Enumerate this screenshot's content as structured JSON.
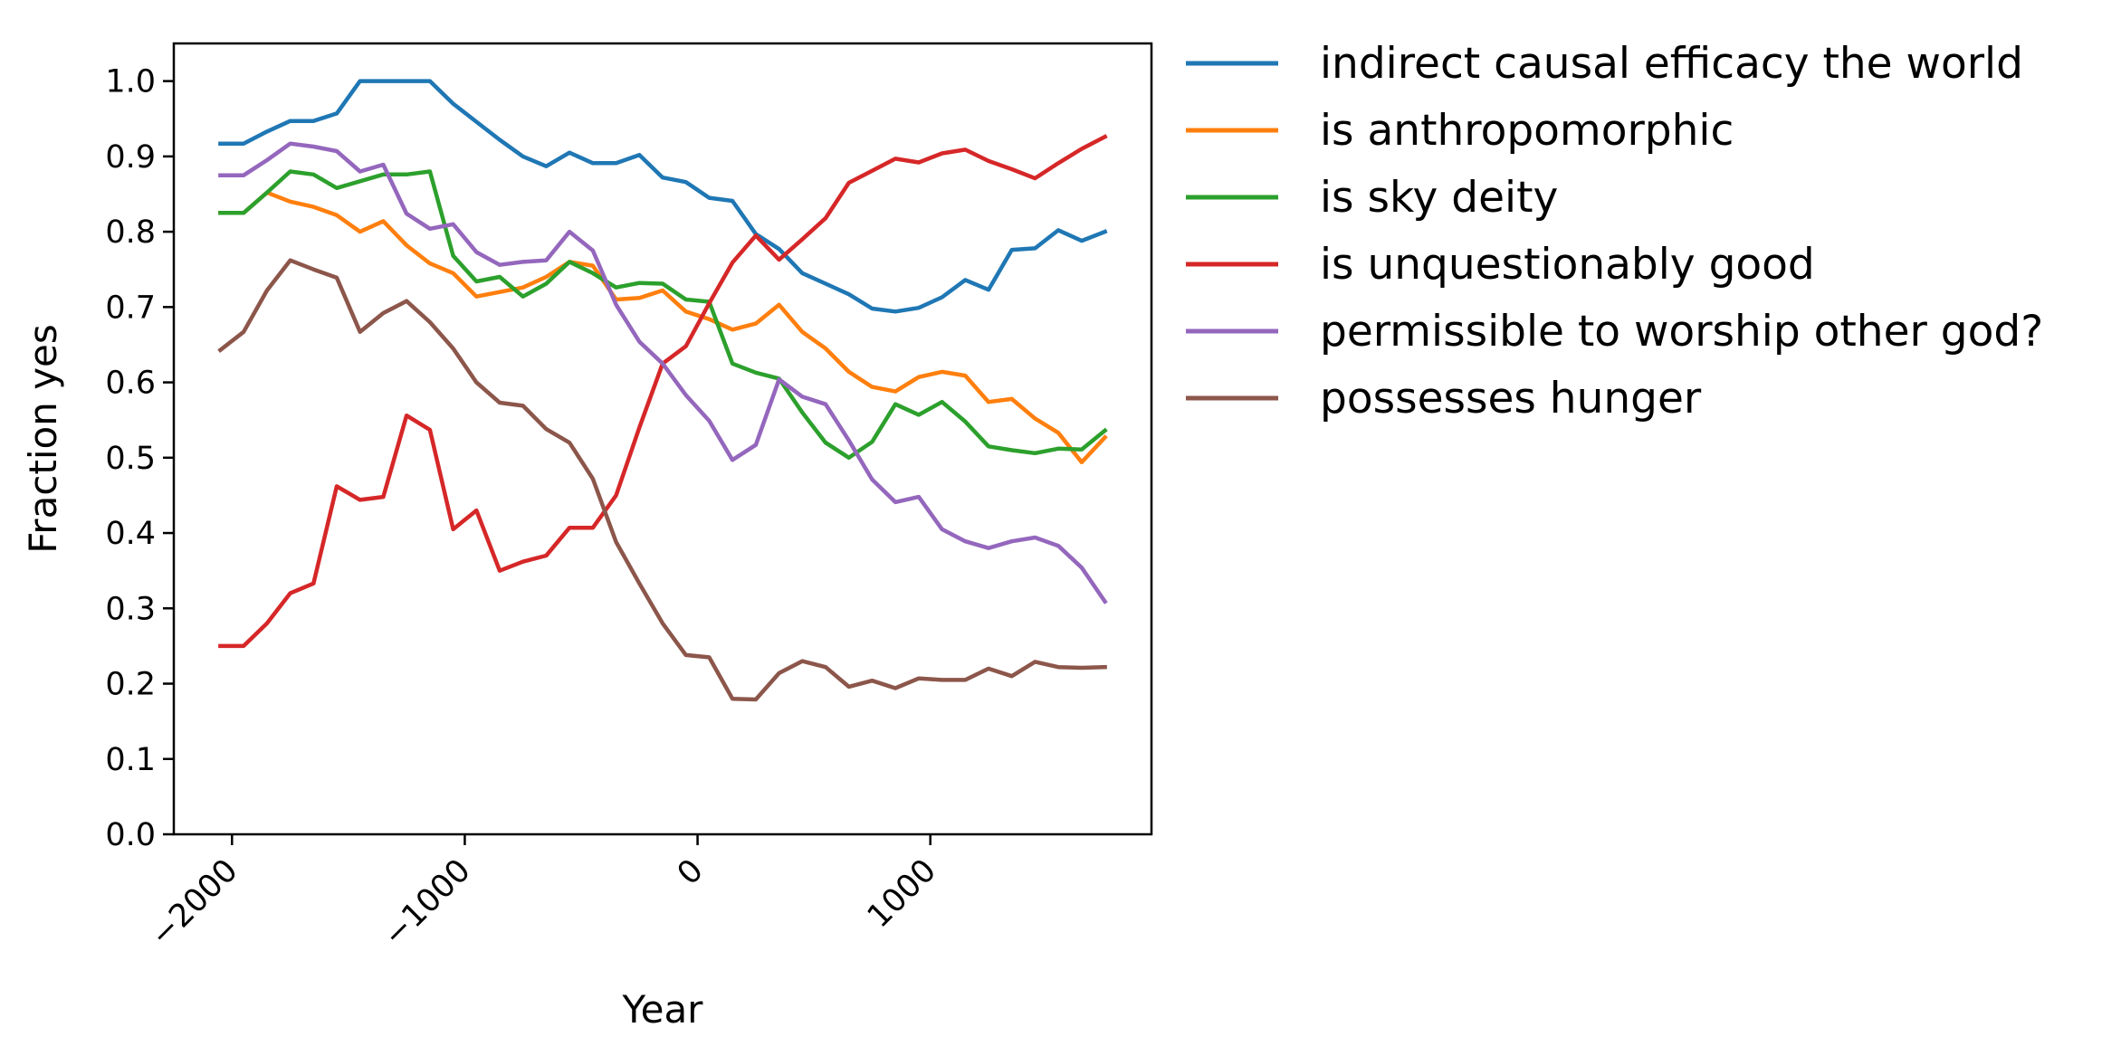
{
  "chart_data": {
    "type": "line",
    "xlabel": "Year",
    "ylabel": "Fraction yes",
    "xlim": [
      -2250,
      1950
    ],
    "ylim": [
      0.0,
      1.05
    ],
    "xticks": [
      -2000,
      -1000,
      0,
      1000
    ],
    "xtick_labels": [
      "−2000",
      "−1000",
      "0",
      "1000"
    ],
    "yticks": [
      0.0,
      0.1,
      0.2,
      0.3,
      0.4,
      0.5,
      0.6,
      0.7,
      0.8,
      0.9,
      1.0
    ],
    "ytick_labels": [
      "0.0",
      "0.1",
      "0.2",
      "0.3",
      "0.4",
      "0.5",
      "0.6",
      "0.7",
      "0.8",
      "0.9",
      "1.0"
    ],
    "grid": false,
    "legend_position": "outside-right-top",
    "x": [
      -2050,
      -1950,
      -1850,
      -1750,
      -1650,
      -1550,
      -1450,
      -1350,
      -1250,
      -1150,
      -1050,
      -950,
      -850,
      -750,
      -650,
      -550,
      -450,
      -350,
      -250,
      -150,
      -50,
      50,
      150,
      250,
      350,
      450,
      550,
      650,
      750,
      850,
      950,
      1050,
      1150,
      1250,
      1350,
      1450,
      1550,
      1650,
      1750
    ],
    "series": [
      {
        "name": "indirect causal efficacy the world",
        "color": "#1f77b4",
        "values": [
          0.917,
          0.917,
          0.933,
          0.947,
          0.947,
          0.957,
          1.0,
          1.0,
          1.0,
          1.0,
          0.97,
          0.946,
          0.922,
          0.9,
          0.887,
          0.905,
          0.891,
          0.891,
          0.902,
          0.872,
          0.866,
          0.845,
          0.841,
          0.797,
          0.777,
          0.745,
          0.731,
          0.717,
          0.698,
          0.694,
          0.699,
          0.713,
          0.736,
          0.723,
          0.776,
          0.778,
          0.802,
          0.788,
          0.8
        ]
      },
      {
        "name": "is anthropomorphic",
        "color": "#ff7f0e",
        "values": [
          0.825,
          0.825,
          0.852,
          0.84,
          0.833,
          0.822,
          0.8,
          0.814,
          0.782,
          0.758,
          0.745,
          0.714,
          0.72,
          0.726,
          0.74,
          0.76,
          0.755,
          0.71,
          0.712,
          0.722,
          0.694,
          0.684,
          0.67,
          0.678,
          0.703,
          0.667,
          0.645,
          0.614,
          0.594,
          0.588,
          0.607,
          0.614,
          0.609,
          0.574,
          0.578,
          0.552,
          0.533,
          0.494,
          0.527
        ]
      },
      {
        "name": "is sky deity",
        "color": "#2ca02c",
        "values": [
          0.825,
          0.825,
          0.852,
          0.88,
          0.876,
          0.858,
          0.867,
          0.876,
          0.876,
          0.88,
          0.768,
          0.734,
          0.74,
          0.714,
          0.731,
          0.76,
          0.745,
          0.726,
          0.732,
          0.731,
          0.71,
          0.707,
          0.625,
          0.613,
          0.605,
          0.56,
          0.52,
          0.5,
          0.521,
          0.571,
          0.557,
          0.574,
          0.548,
          0.515,
          0.51,
          0.506,
          0.512,
          0.511,
          0.536
        ]
      },
      {
        "name": "is unquestionably good",
        "color": "#d62728",
        "values": [
          0.25,
          0.25,
          0.28,
          0.32,
          0.333,
          0.462,
          0.444,
          0.448,
          0.556,
          0.537,
          0.405,
          0.43,
          0.35,
          0.362,
          0.37,
          0.407,
          0.407,
          0.45,
          0.54,
          0.625,
          0.648,
          0.705,
          0.759,
          0.795,
          0.763,
          0.79,
          0.818,
          0.865,
          0.881,
          0.897,
          0.892,
          0.904,
          0.909,
          0.894,
          0.883,
          0.871,
          0.891,
          0.91,
          0.926
        ]
      },
      {
        "name": "permissible to worship other god?",
        "color": "#9467bd",
        "values": [
          0.875,
          0.875,
          0.895,
          0.917,
          0.913,
          0.907,
          0.88,
          0.889,
          0.824,
          0.804,
          0.81,
          0.773,
          0.756,
          0.76,
          0.762,
          0.8,
          0.775,
          0.703,
          0.654,
          0.625,
          0.583,
          0.549,
          0.497,
          0.517,
          0.604,
          0.581,
          0.571,
          0.523,
          0.471,
          0.441,
          0.448,
          0.405,
          0.389,
          0.38,
          0.389,
          0.394,
          0.383,
          0.354,
          0.309
        ]
      },
      {
        "name": "possesses hunger",
        "color": "#8c564b",
        "values": [
          0.643,
          0.667,
          0.722,
          0.762,
          0.75,
          0.739,
          0.667,
          0.692,
          0.708,
          0.68,
          0.645,
          0.6,
          0.573,
          0.569,
          0.538,
          0.52,
          0.472,
          0.388,
          0.333,
          0.28,
          0.238,
          0.235,
          0.18,
          0.179,
          0.214,
          0.23,
          0.222,
          0.196,
          0.204,
          0.194,
          0.207,
          0.205,
          0.205,
          0.22,
          0.21,
          0.229,
          0.222,
          0.221,
          0.222
        ]
      }
    ]
  }
}
